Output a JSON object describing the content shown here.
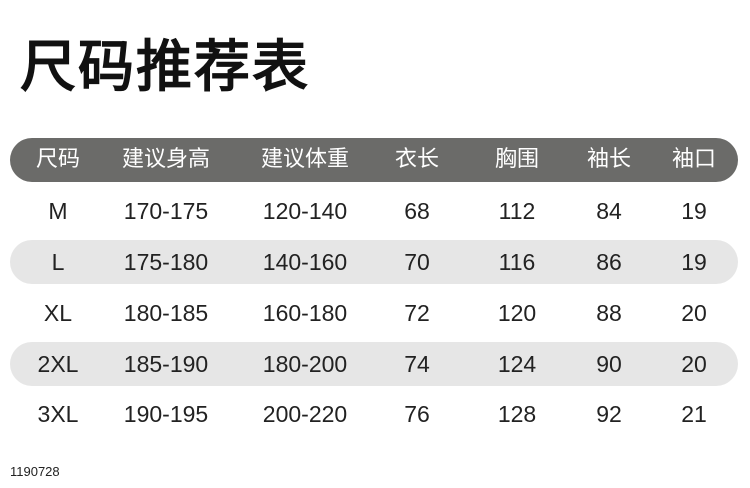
{
  "title": "尺码推荐表",
  "table": {
    "headers": [
      "尺码",
      "建议身高",
      "建议体重",
      "衣长",
      "胸围",
      "袖长",
      "袖口"
    ],
    "rows": [
      [
        "M",
        "170-175",
        "120-140",
        "68",
        "112",
        "84",
        "19"
      ],
      [
        "L",
        "175-180",
        "140-160",
        "70",
        "116",
        "86",
        "19"
      ],
      [
        "XL",
        "180-185",
        "160-180",
        "72",
        "120",
        "88",
        "20"
      ],
      [
        "2XL",
        "185-190",
        "180-200",
        "74",
        "124",
        "90",
        "20"
      ],
      [
        "3XL",
        "190-195",
        "200-220",
        "76",
        "128",
        "92",
        "21"
      ]
    ]
  },
  "footer_code": "1190728",
  "colors": {
    "header_bg": "#6b6b69",
    "stripe_bg": "#e6e6e6"
  }
}
